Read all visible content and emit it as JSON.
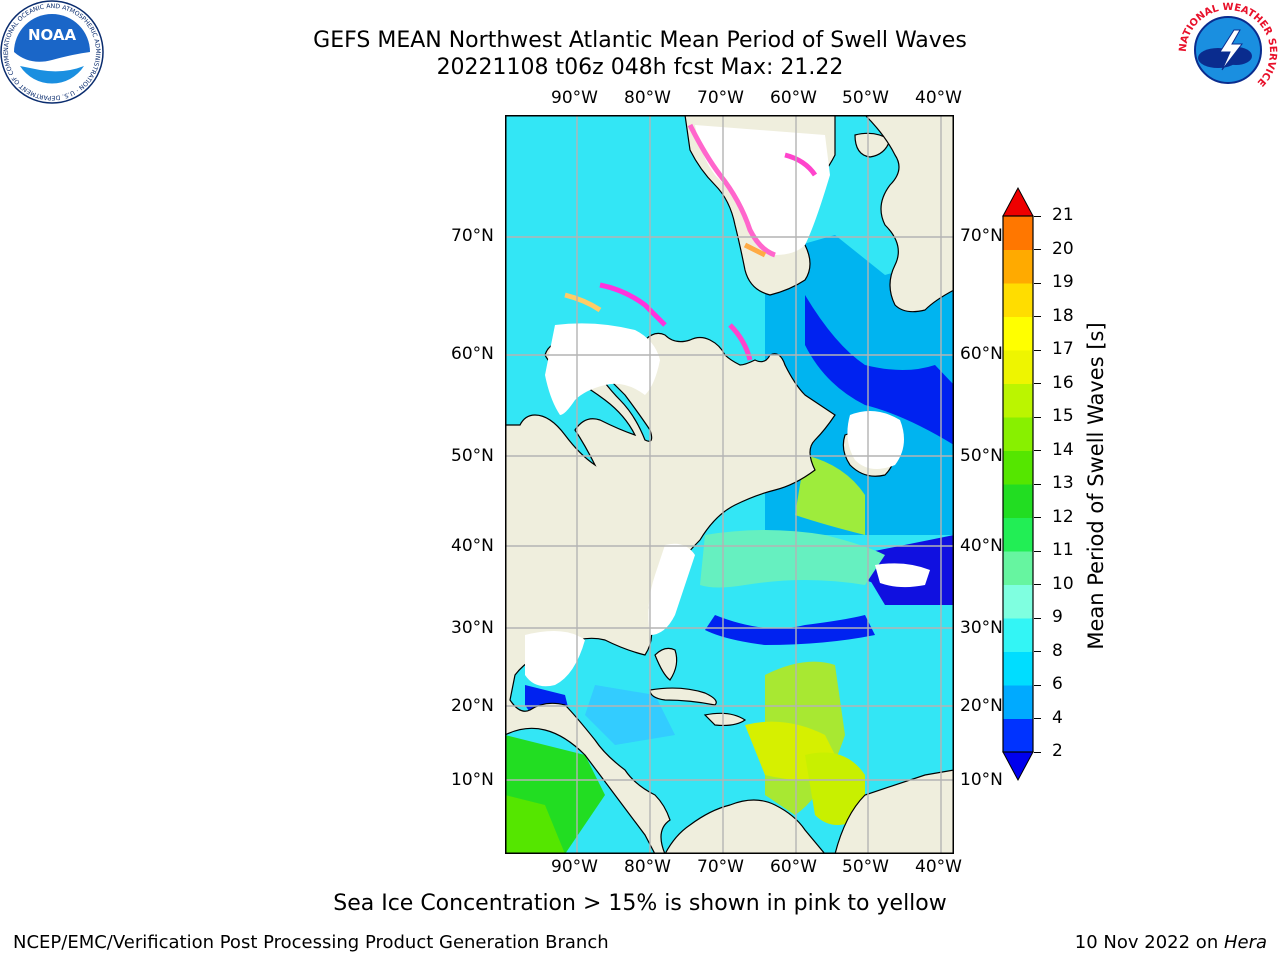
{
  "header": {
    "title_line1": "GEFS MEAN Northwest Atlantic Mean Period of Swell Waves",
    "title_line2": "20221108 t06z 048h fcst   Max: 21.22"
  },
  "logos": {
    "noaa": {
      "icon": "noaa-logo",
      "text": "NOAA",
      "ring_text": "NATIONAL OCEANIC AND ATMOSPHERIC ADMINISTRATION · U.S. DEPARTMENT OF COMMERCE"
    },
    "nws": {
      "icon": "nws-logo",
      "ring_text": "NATIONAL WEATHER SERVICE"
    }
  },
  "map": {
    "lon_labels": [
      "90°W",
      "80°W",
      "70°W",
      "60°W",
      "50°W",
      "40°W"
    ],
    "lat_labels": [
      "70°N",
      "60°N",
      "50°N",
      "40°N",
      "30°N",
      "20°N",
      "10°N"
    ],
    "land_color": "#efeedd",
    "ocean_color": "#33e6f5",
    "grid_color": "#b4b4b4"
  },
  "colorbar": {
    "label": "Mean Period of Swell Waves [s]",
    "ticks": [
      "2",
      "4",
      "6",
      "8",
      "9",
      "10",
      "11",
      "12",
      "13",
      "14",
      "15",
      "16",
      "17",
      "18",
      "19",
      "20",
      "21"
    ],
    "colors": [
      "#0033ff",
      "#00aaff",
      "#00ddff",
      "#33f5f5",
      "#7fffe0",
      "#66f5a0",
      "#22ee55",
      "#22dd22",
      "#55e600",
      "#88f000",
      "#bbf500",
      "#eef500",
      "#ffff00",
      "#ffdd00",
      "#ffaa00",
      "#ff7700",
      "#ff4400",
      "#ee0000"
    ],
    "under_color": "#0000ee",
    "over_color": "#ee0000"
  },
  "caption": "Sea Ice Concentration > 15% is shown in pink to yellow",
  "footer": {
    "left": "NCEP/EMC/Verification Post Processing Product Generation Branch",
    "right_prefix": "10 Nov 2022 on ",
    "right_machine": "Hera"
  }
}
